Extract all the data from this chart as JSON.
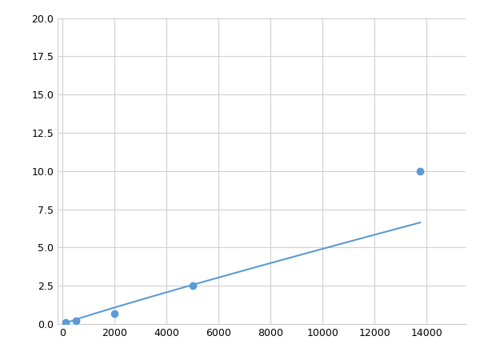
{
  "x": [
    100,
    500,
    2000,
    5000,
    13750
  ],
  "y": [
    0.1,
    0.2,
    0.7,
    2.5,
    10.0
  ],
  "line_color": "#5B9BD5",
  "marker_color": "#5B9BD5",
  "marker_size": 6,
  "xlim": [
    -200,
    15500
  ],
  "ylim": [
    0,
    20.0
  ],
  "xticks": [
    0,
    2000,
    4000,
    6000,
    8000,
    10000,
    12000,
    14000
  ],
  "yticks": [
    0.0,
    2.5,
    5.0,
    7.5,
    10.0,
    12.5,
    15.0,
    17.5,
    20.0
  ],
  "grid_color": "#d0d0d0",
  "background_color": "#ffffff",
  "linewidth": 1.5,
  "figsize": [
    6.0,
    4.5
  ],
  "dpi": 100
}
